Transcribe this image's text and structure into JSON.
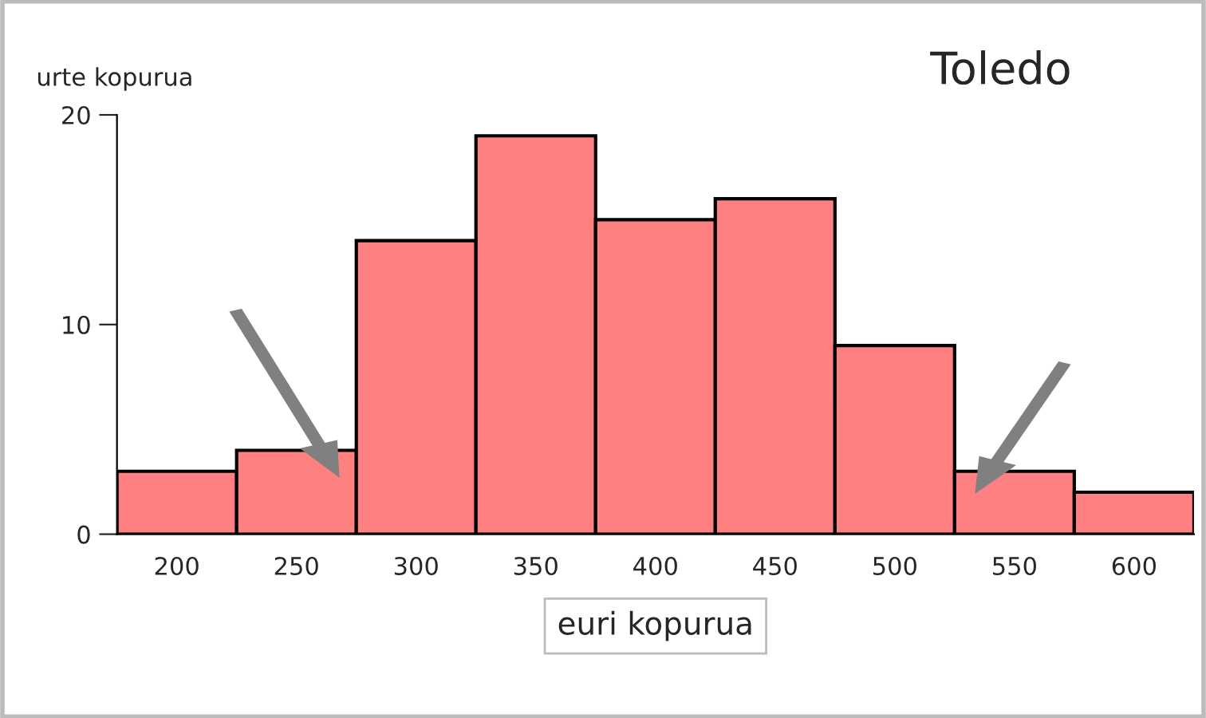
{
  "chart_data": {
    "type": "bar",
    "title": "Toledo",
    "xlabel": "euri kopurua",
    "ylabel": "urte kopurua",
    "categories": [
      "200",
      "250",
      "300",
      "350",
      "400",
      "450",
      "500",
      "550",
      "600"
    ],
    "values": [
      3,
      4,
      14,
      19,
      15,
      16,
      9,
      3,
      2
    ],
    "color": "#ff8080",
    "ylim": [
      0,
      20
    ],
    "yticks": [
      0,
      10,
      20
    ],
    "grid": false
  }
}
